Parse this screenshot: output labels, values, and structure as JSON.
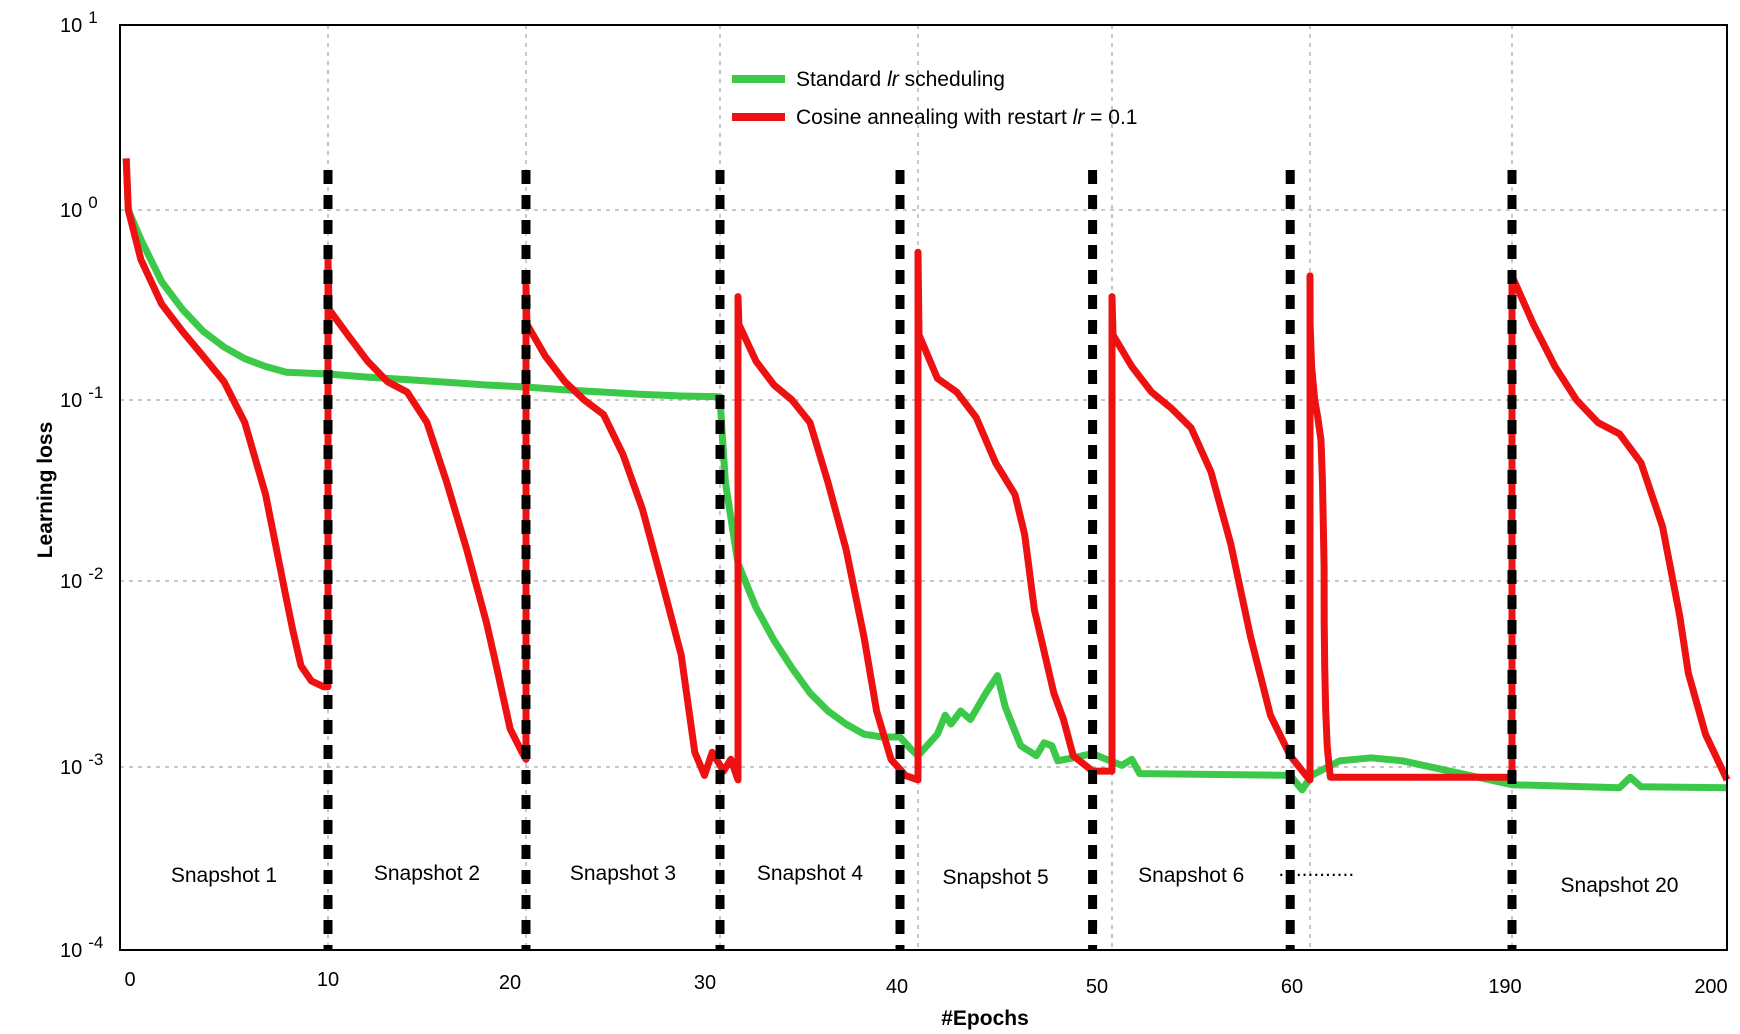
{
  "chart_data": {
    "type": "line",
    "xlabel": "#Epochs",
    "ylabel": "Learning loss",
    "y_scale": "log",
    "ylim_exponent": [
      -4,
      1
    ],
    "ylim": [
      0.0001,
      10
    ],
    "grid": "horizontal at each decade, vertical dotted at each x tick",
    "legend_position": "top-center",
    "x_ticks": [
      "0",
      "10",
      "20",
      "30",
      "40",
      "50",
      "60",
      "190",
      "200"
    ],
    "y_ticks": [
      {
        "exp": 1,
        "base": "10",
        "sup": "1"
      },
      {
        "exp": 0,
        "base": "10",
        "sup": "0"
      },
      {
        "exp": -1,
        "base": "10",
        "sup": "-1"
      },
      {
        "exp": -2,
        "base": "10",
        "sup": "-2"
      },
      {
        "exp": -3,
        "base": "10",
        "sup": "-3"
      },
      {
        "exp": -4,
        "base": "10",
        "sup": "-4"
      }
    ],
    "restart_markers": [
      10,
      20,
      30,
      40,
      50,
      60,
      190
    ],
    "snapshot_labels": [
      {
        "text": "Snapshot 1",
        "x": 5
      },
      {
        "text": "Snapshot 2",
        "x": 15
      },
      {
        "text": "Snapshot 3",
        "x": 25
      },
      {
        "text": "Snapshot 4",
        "x": 35
      },
      {
        "text": "Snapshot 5",
        "x": 45
      },
      {
        "text": "Snapshot 6",
        "x": 55
      },
      {
        "text": ".............",
        "x": 65
      },
      {
        "text": "Snapshot 20",
        "x": 195
      }
    ],
    "legend": [
      {
        "label_pre": "Standard ",
        "label_italic": "lr",
        "label_post": " scheduling",
        "color": "#3cc94a"
      },
      {
        "label_pre": "Cosine annealing with restart ",
        "label_italic": "lr",
        "label_post": " = 0.1",
        "color": "#ee1111"
      }
    ],
    "series": [
      {
        "key": "standard",
        "color": "#3cc94a",
        "points": [
          [
            0.3,
            1.9
          ],
          [
            0.4,
            1.0
          ],
          [
            1,
            0.7
          ],
          [
            2,
            0.42
          ],
          [
            3,
            0.3
          ],
          [
            4,
            0.23
          ],
          [
            5,
            0.19
          ],
          [
            6,
            0.165
          ],
          [
            7,
            0.15
          ],
          [
            8,
            0.14
          ],
          [
            10,
            0.137
          ],
          [
            12,
            0.132
          ],
          [
            14,
            0.128
          ],
          [
            16,
            0.124
          ],
          [
            18,
            0.12
          ],
          [
            20,
            0.117
          ],
          [
            22,
            0.113
          ],
          [
            24,
            0.11
          ],
          [
            26,
            0.107
          ],
          [
            28,
            0.105
          ],
          [
            30,
            0.104
          ],
          [
            30.1,
            0.07
          ],
          [
            30.3,
            0.035
          ],
          [
            31,
            0.0125
          ],
          [
            32,
            0.0072
          ],
          [
            33,
            0.0048
          ],
          [
            34,
            0.0034
          ],
          [
            35,
            0.0025
          ],
          [
            36,
            0.002
          ],
          [
            37,
            0.0017
          ],
          [
            38,
            0.0015
          ],
          [
            39,
            0.00145
          ],
          [
            40,
            0.00145
          ],
          [
            40.6,
            0.00125
          ],
          [
            41,
            0.00115
          ],
          [
            42,
            0.0015
          ],
          [
            42.4,
            0.0019
          ],
          [
            42.7,
            0.0017
          ],
          [
            43.2,
            0.002
          ],
          [
            43.7,
            0.0018
          ],
          [
            44.5,
            0.0025
          ],
          [
            45.1,
            0.0031
          ],
          [
            45.5,
            0.0021
          ],
          [
            46.3,
            0.0013
          ],
          [
            47.1,
            0.00115
          ],
          [
            47.5,
            0.00135
          ],
          [
            47.9,
            0.0013
          ],
          [
            48.2,
            0.00108
          ],
          [
            49,
            0.00112
          ],
          [
            50,
            0.00118
          ],
          [
            50.7,
            0.0011
          ],
          [
            51.5,
            0.00102
          ],
          [
            52,
            0.0011
          ],
          [
            52.4,
            0.00092
          ],
          [
            60,
            0.0009
          ],
          [
            60.6,
            0.00075
          ],
          [
            62,
            0.0009
          ],
          [
            80,
            0.00108
          ],
          [
            100,
            0.00112
          ],
          [
            120,
            0.00108
          ],
          [
            190,
            0.0008
          ],
          [
            195,
            0.00077
          ],
          [
            195.5,
            0.00088
          ],
          [
            196,
            0.00078
          ],
          [
            200,
            0.00077
          ]
        ]
      },
      {
        "key": "cosine",
        "color": "#ee1111",
        "points": [
          [
            0.3,
            1.9
          ],
          [
            0.4,
            1.0
          ],
          [
            1,
            0.55
          ],
          [
            2,
            0.32
          ],
          [
            3,
            0.23
          ],
          [
            4,
            0.17
          ],
          [
            5,
            0.125
          ],
          [
            6,
            0.075
          ],
          [
            7,
            0.03
          ],
          [
            8,
            0.008
          ],
          [
            8.3,
            0.0055
          ],
          [
            8.7,
            0.0035
          ],
          [
            9.2,
            0.0029
          ],
          [
            9.8,
            0.0027
          ],
          [
            10,
            0.0027
          ],
          [
            10,
            0.55
          ],
          [
            10.05,
            0.3
          ],
          [
            11,
            0.22
          ],
          [
            12,
            0.16
          ],
          [
            13,
            0.125
          ],
          [
            14,
            0.11
          ],
          [
            15,
            0.075
          ],
          [
            16,
            0.035
          ],
          [
            17,
            0.015
          ],
          [
            18,
            0.006
          ],
          [
            18.5,
            0.0035
          ],
          [
            19.2,
            0.0016
          ],
          [
            19.8,
            0.0012
          ],
          [
            20,
            0.0011
          ],
          [
            20,
            0.4
          ],
          [
            20.05,
            0.25
          ],
          [
            21,
            0.17
          ],
          [
            22,
            0.125
          ],
          [
            23,
            0.1
          ],
          [
            24,
            0.083
          ],
          [
            25,
            0.05
          ],
          [
            26,
            0.025
          ],
          [
            27,
            0.01
          ],
          [
            28,
            0.004
          ],
          [
            28.7,
            0.0012
          ],
          [
            29.2,
            0.0009
          ],
          [
            29.6,
            0.0012
          ],
          [
            30.2,
            0.00095
          ],
          [
            30.6,
            0.0011
          ],
          [
            31,
            0.00085
          ],
          [
            31,
            0.35
          ],
          [
            31.05,
            0.25
          ],
          [
            32,
            0.16
          ],
          [
            33,
            0.12
          ],
          [
            34,
            0.1
          ],
          [
            35,
            0.075
          ],
          [
            36,
            0.035
          ],
          [
            37,
            0.015
          ],
          [
            38,
            0.005
          ],
          [
            38.7,
            0.002
          ],
          [
            39.5,
            0.0011
          ],
          [
            40.3,
            0.0009
          ],
          [
            41,
            0.00085
          ],
          [
            41,
            0.6
          ],
          [
            41.05,
            0.22
          ],
          [
            42,
            0.13
          ],
          [
            43,
            0.11
          ],
          [
            44,
            0.08
          ],
          [
            45,
            0.045
          ],
          [
            46,
            0.03
          ],
          [
            46.5,
            0.018
          ],
          [
            47,
            0.007
          ],
          [
            48,
            0.0025
          ],
          [
            48.5,
            0.0018
          ],
          [
            49,
            0.00115
          ],
          [
            50,
            0.00095
          ],
          [
            51,
            0.00095
          ],
          [
            51,
            0.35
          ],
          [
            51.05,
            0.22
          ],
          [
            52,
            0.15
          ],
          [
            53,
            0.11
          ],
          [
            54,
            0.09
          ],
          [
            55,
            0.07
          ],
          [
            56,
            0.04
          ],
          [
            57,
            0.016
          ],
          [
            58,
            0.005
          ],
          [
            59,
            0.0019
          ],
          [
            60,
            0.00115
          ],
          [
            60.8,
            0.0009
          ],
          [
            61,
            0.00085
          ],
          [
            61,
            0.45
          ],
          [
            61.05,
            0.25
          ],
          [
            62,
            0.15
          ],
          [
            64,
            0.1
          ],
          [
            66,
            0.08
          ],
          [
            68,
            0.06
          ],
          [
            69,
            0.035
          ],
          [
            70,
            0.012
          ],
          [
            70.1,
            0.006
          ],
          [
            70.4,
            0.0035
          ],
          [
            71,
            0.002
          ],
          [
            72,
            0.0013
          ],
          [
            73,
            0.00105
          ],
          [
            74,
            0.00088
          ],
          [
            190,
            0.00088
          ],
          [
            190,
            0.45
          ],
          [
            191,
            0.25
          ],
          [
            192,
            0.15
          ],
          [
            193,
            0.1
          ],
          [
            194,
            0.075
          ],
          [
            195,
            0.065
          ],
          [
            196,
            0.045
          ],
          [
            197,
            0.02
          ],
          [
            197.8,
            0.0065
          ],
          [
            198.2,
            0.0032
          ],
          [
            199,
            0.0015
          ],
          [
            200,
            0.00085
          ]
        ]
      }
    ]
  }
}
